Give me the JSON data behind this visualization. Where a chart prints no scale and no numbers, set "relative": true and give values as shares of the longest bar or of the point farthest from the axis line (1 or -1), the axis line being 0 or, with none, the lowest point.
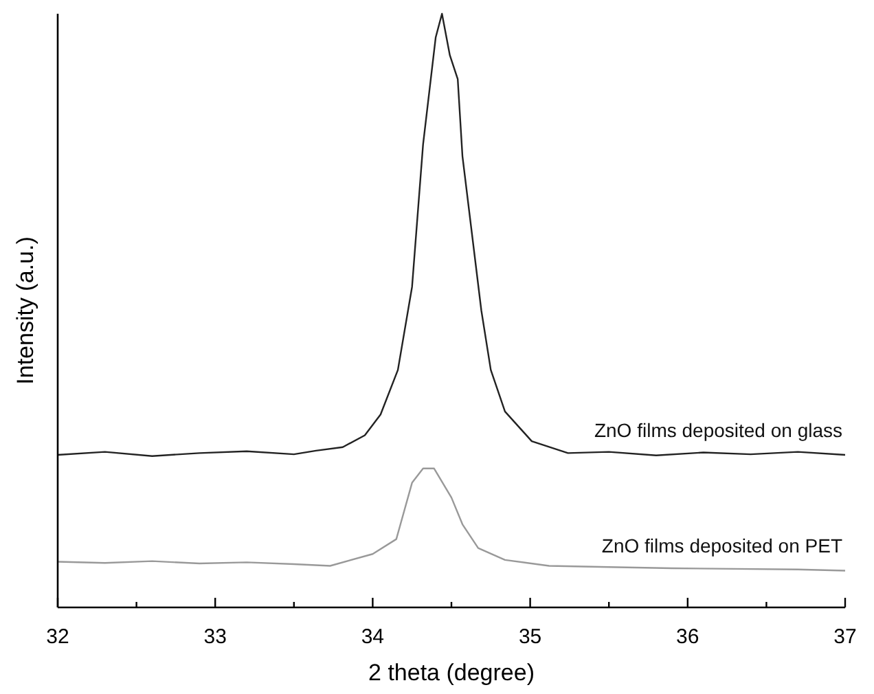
{
  "chart_data": {
    "type": "line",
    "relative": true,
    "xlabel": "2 theta (degree)",
    "ylabel": "Intensity (a.u.)",
    "xlim": [
      32,
      37
    ],
    "xticks": [
      32,
      {
        "value": 32.5,
        "label": null
      },
      33,
      {
        "value": 33.5,
        "label": null
      },
      34,
      {
        "value": 34.5,
        "label": null
      },
      35,
      {
        "value": 35.5,
        "label": null
      },
      36,
      {
        "value": 36.5,
        "label": null
      },
      37
    ],
    "grid": false,
    "marker": "none",
    "line_style": "solid",
    "series": [
      {
        "name": "ZnO films deposited on glass",
        "color": "#222222",
        "x": [
          32,
          32.3,
          32.6,
          32.9,
          33.2,
          33.5,
          33.64,
          33.81,
          33.95,
          34.05,
          34.16,
          34.25,
          34.32,
          34.4,
          34.44,
          34.49,
          34.54,
          34.57,
          34.69,
          34.75,
          34.84,
          35.01,
          35.24,
          35.5,
          35.8,
          36.1,
          36.4,
          36.7,
          37
        ],
        "values": [
          0.257,
          0.262,
          0.255,
          0.26,
          0.263,
          0.258,
          0.264,
          0.27,
          0.29,
          0.325,
          0.4,
          0.54,
          0.78,
          0.96,
          1,
          0.93,
          0.89,
          0.76,
          0.5,
          0.4,
          0.33,
          0.28,
          0.26,
          0.262,
          0.256,
          0.261,
          0.258,
          0.262,
          0.257
        ]
      },
      {
        "name": "ZnO films deposited on PET",
        "color": "#999999",
        "x": [
          32,
          32.3,
          32.6,
          32.9,
          33.2,
          33.5,
          33.73,
          34.0,
          34.15,
          34.25,
          34.32,
          34.39,
          34.5,
          34.57,
          34.67,
          34.84,
          35.12,
          35.5,
          35.9,
          36.3,
          36.7,
          37
        ],
        "values": [
          0.077,
          0.075,
          0.078,
          0.074,
          0.076,
          0.073,
          0.07,
          0.09,
          0.115,
          0.21,
          0.234,
          0.234,
          0.185,
          0.14,
          0.1,
          0.08,
          0.07,
          0.068,
          0.066,
          0.065,
          0.064,
          0.062
        ]
      }
    ]
  }
}
